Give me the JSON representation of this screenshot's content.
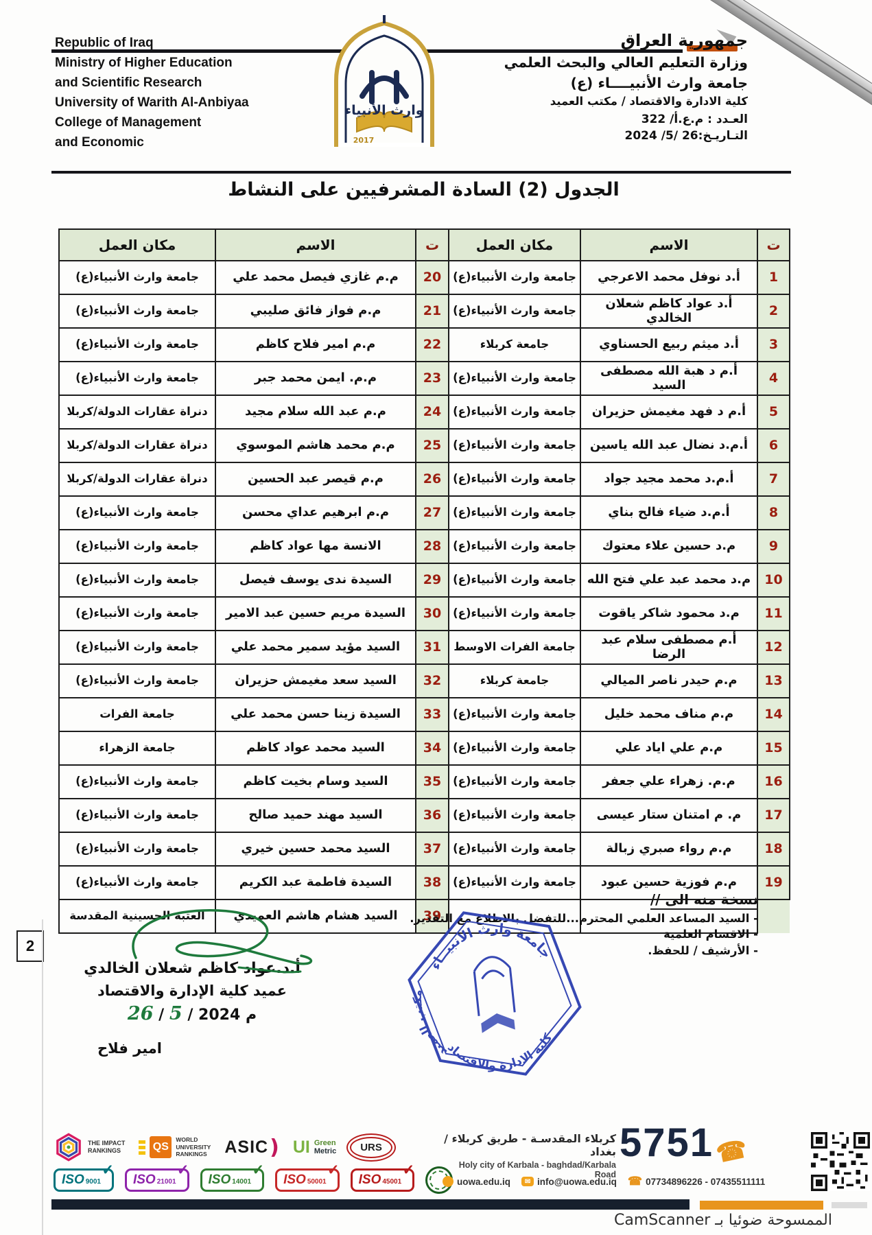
{
  "page": {
    "number": "2",
    "camscanner_note": "الممسوحة ضوئيا بـ CamScanner"
  },
  "colors": {
    "table_header_bg": "#dfe9d3",
    "index_red": "#9b1d0f",
    "stamp_blue": "#2c3fb0",
    "signature_green": "#1e7a3c",
    "footer_orange": "#e8951d",
    "logo_gold": "#c9a23c",
    "logo_navy": "#1c2b52"
  },
  "header": {
    "english_lines": [
      "Republic of Iraq",
      "Ministry of Higher Education",
      "and Scientific Research",
      "University of Warith Al-Anbiyaa",
      "College of Management",
      "and Economic"
    ],
    "arabic_lines": [
      "جمهورية العراق",
      "وزارة التعليم العالي والبحث العلمي",
      "جامعة وارث الأنبيــــاء (ع)",
      "كلية الادارة والاقتصاد / مكتب العميد"
    ],
    "doc_number": "العـدد : م.ع.أ/ 322",
    "doc_date": "التـاريـخ:26 /5/ 2024",
    "logo_text": "وارث الأنبياء",
    "logo_year": "2017"
  },
  "title": "الجدول (2) السادة المشرفيين على النشاط",
  "table": {
    "headers": {
      "index": "ت",
      "name": "الاسم",
      "workplace": "مكان العمل"
    },
    "right_rows": [
      {
        "n": 1,
        "name": "أ.د نوفل محمد الاعرجي",
        "workplace": "جامعة وارث الأنبياء(ع)"
      },
      {
        "n": 2,
        "name": "أ.د عواد كاظم شعلان الخالدي",
        "workplace": "جامعة وارث الأنبياء(ع)"
      },
      {
        "n": 3,
        "name": "أ.د ميثم ربيع الحسناوي",
        "workplace": "جامعة كربلاء"
      },
      {
        "n": 4,
        "name": "أ.م د هبة الله مصطفى السيد",
        "workplace": "جامعة وارث الأنبياء(ع)"
      },
      {
        "n": 5,
        "name": "أ.م د فهد مغيمش حزيران",
        "workplace": "جامعة وارث الأنبياء(ع)"
      },
      {
        "n": 6,
        "name": "أ.م.د نضال عبد الله ياسين",
        "workplace": "جامعة وارث الأنبياء(ع)"
      },
      {
        "n": 7,
        "name": "أ.م.د محمد مجيد جواد",
        "workplace": "جامعة وارث الأنبياء(ع)"
      },
      {
        "n": 8,
        "name": "أ.م.د ضياء فالح بناي",
        "workplace": "جامعة وارث الأنبياء(ع)"
      },
      {
        "n": 9,
        "name": "م.د حسين علاء معتوك",
        "workplace": "جامعة وارث الأنبياء(ع)"
      },
      {
        "n": 10,
        "name": "م.د محمد عبد علي فتح الله",
        "workplace": "جامعة وارث الأنبياء(ع)"
      },
      {
        "n": 11,
        "name": "م.د محمود شاكر ياقوت",
        "workplace": "جامعة وارث الأنبياء(ع)"
      },
      {
        "n": 12,
        "name": "أ.م مصطفى سلام عبد الرضا",
        "workplace": "جامعة الفرات الاوسط"
      },
      {
        "n": 13,
        "name": "م.م حيدر ناصر الميالي",
        "workplace": "جامعة كربلاء"
      },
      {
        "n": 14,
        "name": "م.م مناف محمد خليل",
        "workplace": "جامعة وارث الأنبياء(ع)"
      },
      {
        "n": 15,
        "name": "م.م علي اياد علي",
        "workplace": "جامعة وارث الأنبياء(ع)"
      },
      {
        "n": 16,
        "name": "م.م. زهراء علي جعفر",
        "workplace": "جامعة وارث الأنبياء(ع)"
      },
      {
        "n": 17,
        "name": "م. م امتنان ستار عيسى",
        "workplace": "جامعة وارث الأنبياء(ع)"
      },
      {
        "n": 18,
        "name": "م.م رواء صبري زبالة",
        "workplace": "جامعة وارث الأنبياء(ع)"
      },
      {
        "n": 19,
        "name": "م.م فوزية حسين عبود",
        "workplace": "جامعة وارث الأنبياء(ع)"
      }
    ],
    "left_rows": [
      {
        "n": 20,
        "name": "م.م غازي فيصل محمد علي",
        "workplace": "جامعة وارث الأنبياء(ع)"
      },
      {
        "n": 21,
        "name": "م.م فواز فائق صليبي",
        "workplace": "جامعة وارث الأنبياء(ع)"
      },
      {
        "n": 22,
        "name": "م.م امير فلاح كاظم",
        "workplace": "جامعة وارث الأنبياء(ع)"
      },
      {
        "n": 23,
        "name": "م.م. ايمن محمد جبر",
        "workplace": "جامعة وارث الأنبياء(ع)"
      },
      {
        "n": 24,
        "name": "م.م عبد الله سلام مجيد",
        "workplace": "دنراة عقارات الدولة/كربلا"
      },
      {
        "n": 25,
        "name": "م.م محمد هاشم الموسوي",
        "workplace": "دنراة عقارات الدولة/كربلا"
      },
      {
        "n": 26,
        "name": "م.م قيصر عبد الحسين",
        "workplace": "دنراة عقارات الدولة/كربلا"
      },
      {
        "n": 27,
        "name": "م.م ابرهيم عداي محسن",
        "workplace": "جامعة وارث الأنبياء(ع)"
      },
      {
        "n": 28,
        "name": "الانسة مها عواد كاظم",
        "workplace": "جامعة وارث الأنبياء(ع)"
      },
      {
        "n": 29,
        "name": "السيدة ندى يوسف فيصل",
        "workplace": "جامعة وارث الأنبياء(ع)"
      },
      {
        "n": 30,
        "name": "السيدة مريم حسين عبد الامير",
        "workplace": "جامعة وارث الأنبياء(ع)"
      },
      {
        "n": 31,
        "name": "السيد مؤيد سمير محمد علي",
        "workplace": "جامعة وارث الأنبياء(ع)"
      },
      {
        "n": 32,
        "name": "السيد سعد مغيمش حزيران",
        "workplace": "جامعة وارث الأنبياء(ع)"
      },
      {
        "n": 33,
        "name": "السيدة زينا حسن محمد علي",
        "workplace": "جامعة الفرات"
      },
      {
        "n": 34,
        "name": "السيد  محمد عواد كاظم",
        "workplace": "جامعة الزهراء"
      },
      {
        "n": 35,
        "name": "السيد وسام بخيت كاظم",
        "workplace": "جامعة وارث الأنبياء(ع)"
      },
      {
        "n": 36,
        "name": "السيد مهند حميد صالح",
        "workplace": "جامعة وارث الأنبياء(ع)"
      },
      {
        "n": 37,
        "name": "السيد محمد حسين خيري",
        "workplace": "جامعة وارث الأنبياء(ع)"
      },
      {
        "n": 38,
        "name": "السيدة فاطمة عبد الكريم",
        "workplace": "جامعة وارث الأنبياء(ع)"
      },
      {
        "n": 39,
        "name": "السيد هشام هاشم العميدي",
        "workplace": "العتبة الحسينية المقدسة"
      }
    ]
  },
  "signature": {
    "name": "أ.د.عواد كاظم شعلان الخالدي",
    "role": "عميد كلية الإدارة والاقتصاد",
    "date_day": "26",
    "date_month": "5",
    "date_suffix": "/ 2024 م",
    "clerk": "امير فلاح"
  },
  "stamp": {
    "top": "جامعة وارث الانبيــاء",
    "side": "مكتب العميد",
    "bottom": "كلية الادارة والاقتصاد"
  },
  "distribution": {
    "heading": "نسخة منه الى //",
    "items": [
      "- السيد المساعد العلمي المحترم...للتفضل بالاطلاع مع التقدير.",
      "- الاقسام العلمية",
      "- الأرشيف / للحفظ."
    ]
  },
  "footer": {
    "rankings": {
      "impact1": "THE IMPACT",
      "impact2": "RANKINGS",
      "qs": "QS",
      "qs_sub1": "WORLD",
      "qs_sub2": "UNIVERSITY",
      "qs_sub3": "RANKINGS",
      "asic": "ASIC",
      "ui": "UI",
      "ui_green": "Green",
      "ui_metric": "Metric",
      "urs": "URS"
    },
    "iso_badges": [
      {
        "label": "ISO",
        "num": "9001",
        "color": "#00737c"
      },
      {
        "label": "ISO",
        "num": "21001",
        "color": "#8e24aa"
      },
      {
        "label": "ISO",
        "num": "14001",
        "color": "#2f7d31"
      },
      {
        "label": "ISO",
        "num": "50001",
        "color": "#c62828"
      },
      {
        "label": "ISO",
        "num": "45001",
        "color": "#b71c1c"
      }
    ],
    "address_ar": "كربلاء المقدسـة - طريق كربلاء / بغداد",
    "address_en": "Holy city of Karbala - baghdad/Karbala Road",
    "short_number": "5751",
    "website": "uowa.edu.iq",
    "email": "info@uowa.edu.iq",
    "phones": "07734896226 - 07435511111"
  }
}
